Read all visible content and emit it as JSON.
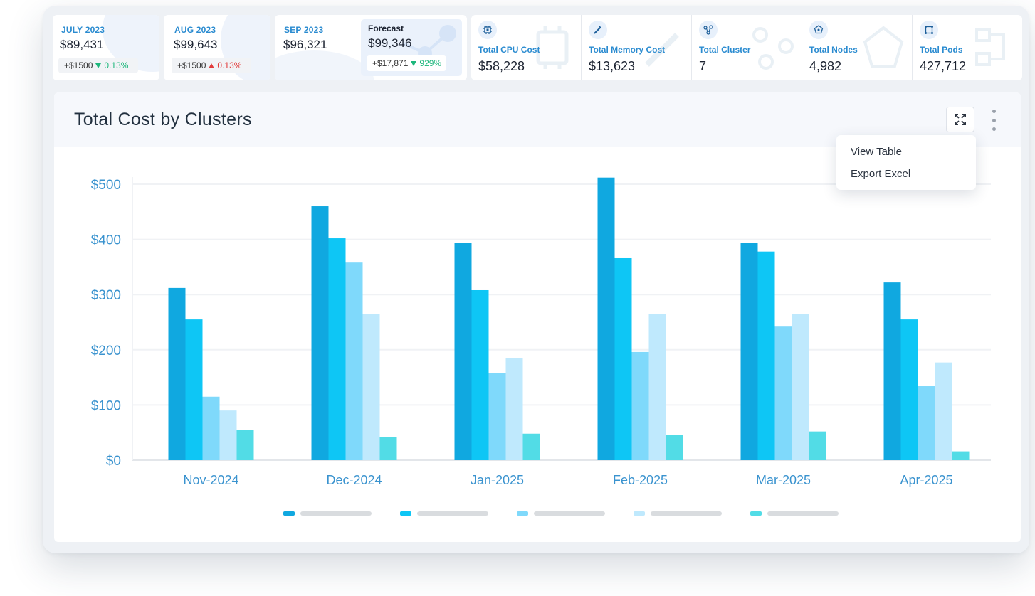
{
  "kpi_cards": [
    {
      "month": "JULY 2023",
      "amount": "$89,431",
      "delta": "+$1500",
      "pct": "0.13%",
      "direction": "down"
    },
    {
      "month": "AUG 2023",
      "amount": "$99,643",
      "delta": "+$1500",
      "pct": "0.13%",
      "direction": "up"
    },
    {
      "month": "SEP 2023",
      "amount": "$96,321"
    }
  ],
  "forecast": {
    "label": "Forecast",
    "amount": "$99,346",
    "delta": "+$17,871",
    "pct": "929%",
    "direction": "down"
  },
  "metrics": [
    {
      "label": "Total CPU Cost",
      "value": "$58,228",
      "icon": "cpu-icon"
    },
    {
      "label": "Total Memory Cost",
      "value": "$13,623",
      "icon": "memory-icon"
    },
    {
      "label": "Total Cluster",
      "value": "7",
      "icon": "cluster-icon"
    },
    {
      "label": "Total Nodes",
      "value": "4,982",
      "icon": "nodes-icon"
    },
    {
      "label": "Total Pods",
      "value": "427,712",
      "icon": "pods-icon"
    }
  ],
  "panel": {
    "title": "Total Cost by Clusters"
  },
  "menu": {
    "items": [
      "View Table",
      "Export Excel"
    ]
  },
  "colors": {
    "accent": "#2a8bd0",
    "positive": "#1db77c",
    "negative": "#e23b3b",
    "series": [
      "#10a8e0",
      "#0ec6f5",
      "#7fd9fb",
      "#bfe9fd",
      "#52dce6"
    ]
  },
  "chart_data": {
    "type": "bar",
    "categories": [
      "Nov-2024",
      "Dec-2024",
      "Jan-2025",
      "Feb-2025",
      "Mar-2025",
      "Apr-2025"
    ],
    "y_tick_labels": [
      "$0",
      "$100",
      "$200",
      "$300",
      "$400",
      "$500"
    ],
    "ylim": [
      0,
      500
    ],
    "grid": true,
    "legend": "bottom",
    "series": [
      {
        "values": [
          312,
          460,
          394,
          512,
          394,
          322
        ]
      },
      {
        "values": [
          255,
          402,
          308,
          366,
          378,
          255
        ]
      },
      {
        "values": [
          115,
          358,
          158,
          196,
          242,
          134
        ]
      },
      {
        "values": [
          90,
          265,
          185,
          265,
          265,
          177
        ]
      },
      {
        "values": [
          55,
          42,
          48,
          46,
          52,
          16
        ]
      }
    ]
  }
}
